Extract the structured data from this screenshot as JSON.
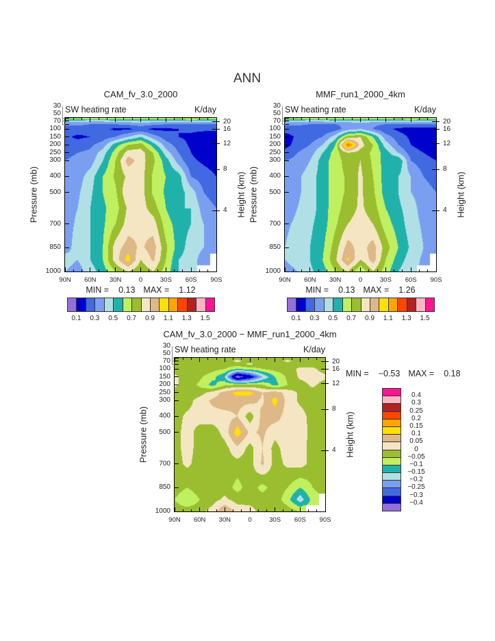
{
  "title": "ANN",
  "chart_data": [
    {
      "type": "heatmap",
      "title": "CAM_fv_3.0_2000",
      "subtitle_left": "SW heating rate",
      "subtitle_right": "K/day",
      "ylabel": "Pressure (mb)",
      "ylabel_right": "Height (km)",
      "xticks": [
        "90N",
        "60N",
        "30N",
        "0",
        "30S",
        "60S",
        "90S"
      ],
      "yticks": [
        "30",
        "50",
        "70",
        "100",
        "150",
        "200",
        "250",
        "300",
        "400",
        "500",
        "700",
        "850",
        "1000"
      ],
      "yticks_right": [
        "20",
        "16",
        "12",
        "8",
        "4"
      ],
      "ylim": [
        1000,
        30
      ],
      "xlim": [
        "90N",
        "90S"
      ],
      "min_label": "MIN =",
      "min": "0.13",
      "max_label": "MAX =",
      "max": "1.12",
      "levels": [
        0.1,
        0.2,
        0.3,
        0.4,
        0.5,
        0.6,
        0.7,
        0.8,
        0.9,
        1.0,
        1.1,
        1.2,
        1.3,
        1.4,
        1.5
      ],
      "colors": [
        "#9370db",
        "#0000cd",
        "#4169e1",
        "#7b9ff0",
        "#b0e0e6",
        "#20b2aa",
        "#c0f060",
        "#9abe30",
        "#f5e6c3",
        "#deb887",
        "#ffe000",
        "#ffa500",
        "#ff4500",
        "#b22222",
        "#ffb6c1",
        "#ff1493"
      ],
      "colorbar_labels": [
        "0.1",
        "0.3",
        "0.5",
        "0.7",
        "0.9",
        "1.1",
        "1.3",
        "1.5"
      ],
      "lat": [
        90,
        75,
        60,
        45,
        30,
        15,
        0,
        -15,
        -30,
        -45,
        -60,
        -75,
        -90
      ],
      "pressure": [
        30,
        50,
        70,
        100,
        150,
        200,
        250,
        300,
        400,
        500,
        600,
        700,
        850,
        925,
        1000
      ],
      "values": [
        [
          0.75,
          0.75,
          0.7,
          0.7,
          0.7,
          0.7,
          0.7,
          0.7,
          0.7,
          0.75,
          0.8,
          0.75,
          0.7
        ],
        [
          0.45,
          0.45,
          0.42,
          0.42,
          0.45,
          0.45,
          0.45,
          0.45,
          0.45,
          0.45,
          0.45,
          0.45,
          0.45
        ],
        [
          0.32,
          0.32,
          0.3,
          0.3,
          0.3,
          0.32,
          0.35,
          0.32,
          0.3,
          0.3,
          0.3,
          0.3,
          0.3
        ],
        [
          0.25,
          0.25,
          0.25,
          0.22,
          0.18,
          0.18,
          0.22,
          0.18,
          0.18,
          0.2,
          0.22,
          0.22,
          0.22
        ],
        [
          0.22,
          0.18,
          0.2,
          0.25,
          0.3,
          0.4,
          0.5,
          0.35,
          0.25,
          0.2,
          0.18,
          0.15,
          0.15
        ],
        [
          0.25,
          0.25,
          0.28,
          0.35,
          0.55,
          0.7,
          0.75,
          0.55,
          0.35,
          0.25,
          0.18,
          0.15,
          0.15
        ],
        [
          0.28,
          0.3,
          0.32,
          0.45,
          0.65,
          0.85,
          0.85,
          0.7,
          0.45,
          0.3,
          0.2,
          0.15,
          0.15
        ],
        [
          0.3,
          0.32,
          0.35,
          0.5,
          0.7,
          0.95,
          0.85,
          0.72,
          0.55,
          0.35,
          0.22,
          0.18,
          0.15
        ],
        [
          0.32,
          0.35,
          0.45,
          0.6,
          0.72,
          0.82,
          0.85,
          0.68,
          0.6,
          0.55,
          0.3,
          0.25,
          0.2
        ],
        [
          0.35,
          0.38,
          0.48,
          0.6,
          0.68,
          0.9,
          0.85,
          0.68,
          0.58,
          0.55,
          0.45,
          0.3,
          0.25
        ],
        [
          0.35,
          0.4,
          0.5,
          0.58,
          0.65,
          0.82,
          0.85,
          0.75,
          0.6,
          0.5,
          0.5,
          0.35,
          0.3
        ],
        [
          0.35,
          0.42,
          0.5,
          0.58,
          0.7,
          0.85,
          0.88,
          0.85,
          0.65,
          0.55,
          0.5,
          0.4,
          0.3
        ],
        [
          0.35,
          0.45,
          0.5,
          0.6,
          0.85,
          0.95,
          0.88,
          0.95,
          0.72,
          0.55,
          0.45,
          0.4,
          0.3
        ],
        [
          0.45,
          0.4,
          0.5,
          0.6,
          0.85,
          1.05,
          0.8,
          0.92,
          0.7,
          0.5,
          0.45,
          0.35,
          null
        ],
        [
          0.4,
          0.35,
          0.45,
          0.55,
          0.7,
          0.8,
          0.72,
          0.8,
          0.65,
          0.5,
          0.4,
          null,
          null
        ]
      ]
    },
    {
      "type": "heatmap",
      "title": "MMF_run1_2000_4km",
      "subtitle_left": "SW heating rate",
      "subtitle_right": "K/day",
      "ylabel": "Pressure (mb)",
      "ylabel_right": "Height (km)",
      "xticks": [
        "90N",
        "60N",
        "30N",
        "0",
        "30S",
        "60S",
        "90S"
      ],
      "yticks": [
        "30",
        "50",
        "70",
        "100",
        "150",
        "200",
        "250",
        "300",
        "400",
        "500",
        "700",
        "850",
        "1000"
      ],
      "yticks_right": [
        "20",
        "16",
        "12",
        "8",
        "4"
      ],
      "ylim": [
        1000,
        30
      ],
      "xlim": [
        "90N",
        "90S"
      ],
      "min_label": "MIN =",
      "min": "0.13",
      "max_label": "MAX =",
      "max": "1.26",
      "levels": [
        0.1,
        0.2,
        0.3,
        0.4,
        0.5,
        0.6,
        0.7,
        0.8,
        0.9,
        1.0,
        1.1,
        1.2,
        1.3,
        1.4,
        1.5
      ],
      "colors": [
        "#9370db",
        "#0000cd",
        "#4169e1",
        "#7b9ff0",
        "#b0e0e6",
        "#20b2aa",
        "#c0f060",
        "#9abe30",
        "#f5e6c3",
        "#deb887",
        "#ffe000",
        "#ffa500",
        "#ff4500",
        "#b22222",
        "#ffb6c1",
        "#ff1493"
      ],
      "colorbar_labels": [
        "0.1",
        "0.3",
        "0.5",
        "0.7",
        "0.9",
        "1.1",
        "1.3",
        "1.5"
      ],
      "lat": [
        90,
        75,
        60,
        45,
        30,
        15,
        0,
        -15,
        -30,
        -45,
        -60,
        -75,
        -90
      ],
      "pressure": [
        30,
        50,
        70,
        100,
        150,
        200,
        250,
        300,
        400,
        500,
        600,
        700,
        850,
        925,
        1000
      ],
      "values": [
        [
          0.75,
          0.75,
          0.7,
          0.7,
          0.7,
          0.7,
          0.7,
          0.7,
          0.7,
          0.75,
          0.8,
          0.75,
          0.7
        ],
        [
          0.45,
          0.45,
          0.42,
          0.42,
          0.45,
          0.45,
          0.45,
          0.45,
          0.45,
          0.45,
          0.45,
          0.45,
          0.45
        ],
        [
          0.32,
          0.32,
          0.3,
          0.3,
          0.3,
          0.32,
          0.35,
          0.32,
          0.3,
          0.3,
          0.28,
          0.28,
          0.28
        ],
        [
          0.25,
          0.25,
          0.22,
          0.22,
          0.25,
          0.35,
          0.4,
          0.3,
          0.22,
          0.18,
          0.15,
          0.15,
          0.15
        ],
        [
          0.15,
          0.22,
          0.25,
          0.3,
          0.45,
          0.75,
          0.8,
          0.6,
          0.35,
          0.25,
          0.18,
          0.15,
          0.15
        ],
        [
          0.15,
          0.25,
          0.3,
          0.4,
          0.6,
          1.25,
          0.85,
          0.7,
          0.45,
          0.3,
          0.2,
          0.15,
          0.15
        ],
        [
          0.25,
          0.3,
          0.35,
          0.5,
          0.65,
          0.8,
          0.75,
          0.68,
          0.55,
          0.4,
          0.25,
          0.2,
          0.15
        ],
        [
          0.3,
          0.32,
          0.4,
          0.55,
          0.65,
          0.75,
          0.8,
          0.68,
          0.55,
          0.6,
          0.3,
          0.25,
          0.2
        ],
        [
          0.35,
          0.38,
          0.45,
          0.55,
          0.65,
          0.72,
          0.82,
          0.7,
          0.55,
          0.5,
          0.4,
          0.3,
          0.25
        ],
        [
          0.35,
          0.38,
          0.45,
          0.55,
          0.65,
          0.72,
          0.82,
          0.72,
          0.55,
          0.5,
          0.4,
          0.35,
          0.3
        ],
        [
          0.35,
          0.4,
          0.45,
          0.55,
          0.66,
          0.75,
          0.82,
          0.75,
          0.6,
          0.52,
          0.45,
          0.35,
          0.3
        ],
        [
          0.38,
          0.42,
          0.48,
          0.55,
          0.68,
          0.8,
          0.85,
          0.8,
          0.65,
          0.55,
          0.45,
          0.38,
          0.32
        ],
        [
          0.4,
          0.45,
          0.5,
          0.58,
          0.75,
          0.95,
          0.85,
          0.95,
          0.75,
          0.6,
          0.48,
          0.4,
          0.32
        ],
        [
          0.4,
          0.42,
          0.5,
          0.6,
          0.78,
          1.02,
          0.8,
          0.95,
          0.7,
          0.55,
          0.45,
          0.38,
          null
        ],
        [
          0.38,
          0.4,
          0.48,
          0.55,
          0.7,
          0.8,
          0.6,
          0.8,
          0.65,
          0.5,
          0.42,
          null,
          null
        ]
      ]
    },
    {
      "type": "heatmap",
      "title": "CAM_fv_3.0_2000 − MMF_run1_2000_4km",
      "subtitle_left": "SW heating rate",
      "subtitle_right": "K/day",
      "ylabel": "Pressure (mb)",
      "ylabel_right": "Height (km)",
      "xticks": [
        "90N",
        "60N",
        "30N",
        "0",
        "30S",
        "60S",
        "90S"
      ],
      "yticks": [
        "30",
        "50",
        "70",
        "100",
        "150",
        "200",
        "250",
        "300",
        "400",
        "500",
        "700",
        "850",
        "1000"
      ],
      "yticks_right": [
        "20",
        "16",
        "12",
        "8",
        "4"
      ],
      "ylim": [
        1000,
        30
      ],
      "xlim": [
        "90N",
        "90S"
      ],
      "min_label": "MIN =",
      "min": "−0.53",
      "max_label": "MAX =",
      "max": "0.18",
      "levels": [
        -0.4,
        -0.3,
        -0.25,
        -0.2,
        -0.15,
        -0.1,
        -0.05,
        0,
        0.05,
        0.1,
        0.15,
        0.2,
        0.25,
        0.3,
        0.4
      ],
      "colors": [
        "#9370db",
        "#0000cd",
        "#4169e1",
        "#7b9ff0",
        "#b0e0e6",
        "#20b2aa",
        "#c0f060",
        "#9abe30",
        "#f5e6c3",
        "#deb887",
        "#ffe000",
        "#ffa500",
        "#ff4500",
        "#b22222",
        "#ffb6c1",
        "#ff1493"
      ],
      "colorbar_labels": [
        "−0.4",
        "−0.3",
        "−0.25",
        "−0.2",
        "−0.15",
        "−0.1",
        "−0.05",
        "0",
        "0.05",
        "0.1",
        "0.15",
        "0.2",
        "0.25",
        "0.3",
        "0.4"
      ],
      "lat": [
        90,
        75,
        60,
        45,
        30,
        15,
        0,
        -15,
        -30,
        -45,
        -60,
        -75,
        -90
      ],
      "pressure": [
        30,
        50,
        70,
        100,
        150,
        200,
        250,
        300,
        400,
        500,
        600,
        700,
        850,
        925,
        1000
      ],
      "values": [
        [
          -0.02,
          -0.02,
          -0.02,
          -0.02,
          -0.02,
          -0.02,
          -0.02,
          -0.02,
          -0.02,
          -0.02,
          -0.02,
          -0.02,
          -0.02
        ],
        [
          -0.02,
          -0.02,
          -0.02,
          -0.02,
          -0.02,
          0.01,
          -0.02,
          -0.02,
          -0.02,
          0.01,
          -0.02,
          -0.02,
          -0.02
        ],
        [
          -0.02,
          -0.02,
          -0.02,
          -0.02,
          -0.02,
          -0.02,
          0.01,
          -0.02,
          -0.02,
          -0.02,
          -0.02,
          -0.02,
          -0.02
        ],
        [
          -0.02,
          -0.02,
          -0.02,
          -0.03,
          -0.05,
          -0.1,
          -0.08,
          -0.05,
          -0.03,
          -0.02,
          0.01,
          0.01,
          -0.02
        ],
        [
          0.01,
          -0.02,
          -0.04,
          -0.08,
          -0.15,
          -0.45,
          -0.35,
          -0.2,
          -0.1,
          -0.04,
          0.01,
          0.02,
          0.01
        ],
        [
          0.01,
          -0.02,
          -0.06,
          -0.12,
          -0.06,
          -0.05,
          -0.05,
          -0.05,
          -0.12,
          -0.05,
          -0.02,
          0.01,
          -0.02
        ],
        [
          -0.02,
          -0.02,
          -0.02,
          0.02,
          0.07,
          0.12,
          0.12,
          0.05,
          0.08,
          0.03,
          -0.01,
          -0.02,
          -0.02
        ],
        [
          -0.02,
          -0.02,
          0.02,
          0.06,
          0.08,
          0.07,
          0.07,
          0.04,
          0.12,
          0.03,
          -0.01,
          -0.02,
          -0.02
        ],
        [
          -0.02,
          0.01,
          0.02,
          0.03,
          0.03,
          0.05,
          -0.03,
          0.07,
          0.07,
          0.03,
          0.02,
          -0.02,
          -0.02
        ],
        [
          -0.02,
          0.02,
          -0.02,
          -0.03,
          0.02,
          0.13,
          0.04,
          0.06,
          0.02,
          0.04,
          0.03,
          -0.02,
          -0.02
        ],
        [
          -0.02,
          0.02,
          -0.02,
          -0.03,
          -0.02,
          0.04,
          -0.02,
          0.05,
          -0.02,
          0.03,
          0.02,
          -0.02,
          -0.02
        ],
        [
          -0.02,
          0.01,
          -0.02,
          -0.03,
          -0.02,
          -0.02,
          -0.02,
          0.06,
          -0.02,
          0.01,
          0.02,
          -0.02,
          -0.02
        ],
        [
          -0.02,
          -0.05,
          -0.02,
          -0.02,
          -0.02,
          -0.07,
          -0.02,
          -0.07,
          -0.02,
          -0.05,
          -0.1,
          -0.05,
          -0.02
        ],
        [
          -0.05,
          -0.1,
          -0.05,
          -0.02,
          0.01,
          -0.02,
          -0.02,
          -0.02,
          -0.02,
          -0.08,
          -0.18,
          -0.08,
          null
        ],
        [
          -0.02,
          -0.02,
          -0.02,
          0.02,
          0.1,
          0.03,
          0.02,
          -0.02,
          -0.02,
          -0.02,
          -0.05,
          null,
          null
        ]
      ]
    }
  ]
}
